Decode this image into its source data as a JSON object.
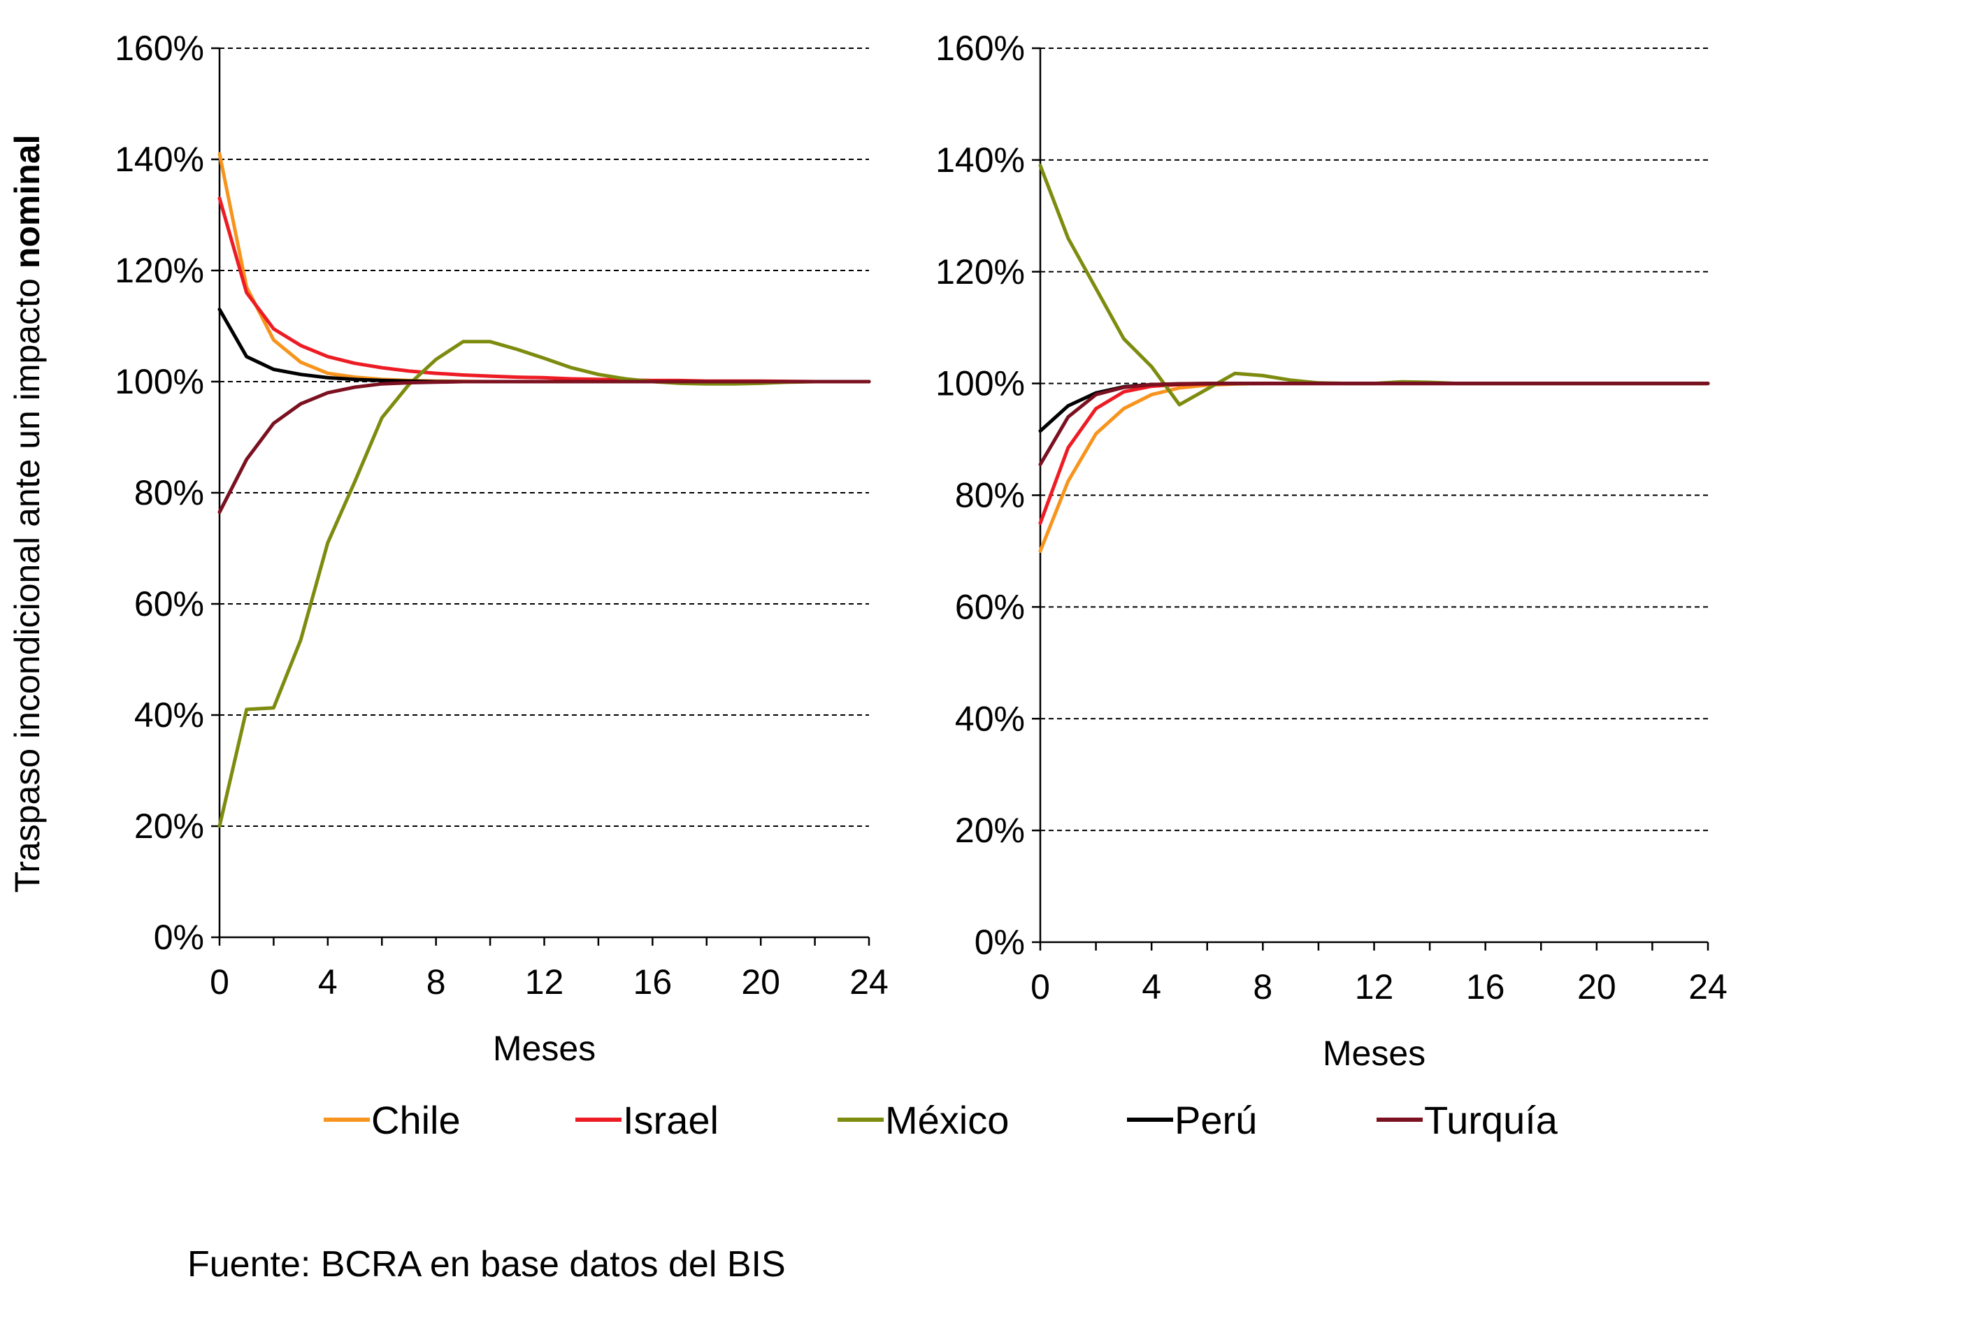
{
  "y_axis_title": {
    "prefix": "Traspaso incondicional ante un impacto ",
    "emphasis": "nominal"
  },
  "source_note": "Fuente: BCRA en base datos del BIS",
  "colors": {
    "Chile": "#F7941D",
    "Israel": "#ED1C24",
    "México": "#7D8B0E",
    "Perú": "#000000",
    "Turquía": "#7A1020",
    "grid": "#000000",
    "axis": "#000000"
  },
  "legend": [
    "Chile",
    "Israel",
    "México",
    "Perú",
    "Turquía"
  ],
  "chart_data": [
    {
      "type": "line",
      "xlabel": "Meses",
      "ylabel": "Traspaso incondicional ante un impacto nominal",
      "xlim": [
        0,
        24
      ],
      "ylim": [
        0,
        160
      ],
      "xticks": [
        0,
        4,
        8,
        12,
        16,
        20,
        24
      ],
      "yticks": [
        0,
        20,
        40,
        60,
        80,
        100,
        120,
        140,
        160
      ],
      "ytick_labels": [
        "0%",
        "20%",
        "40%",
        "60%",
        "80%",
        "100%",
        "120%",
        "140%",
        "160%"
      ],
      "grid": "horizontal dashed",
      "x": [
        0,
        1,
        2,
        3,
        4,
        5,
        6,
        7,
        8,
        9,
        10,
        11,
        12,
        13,
        14,
        15,
        16,
        17,
        18,
        19,
        20,
        21,
        22,
        23,
        24
      ],
      "series": [
        {
          "name": "Chile",
          "values": [
            141,
            117,
            107.5,
            103.5,
            101.5,
            100.8,
            100.4,
            100.2,
            100.1,
            100.05,
            100,
            100,
            100,
            100,
            100,
            100,
            100,
            100,
            100,
            100,
            100,
            100,
            100,
            100,
            100
          ]
        },
        {
          "name": "Israel",
          "values": [
            133,
            116,
            109.5,
            106.5,
            104.5,
            103.3,
            102.5,
            101.9,
            101.5,
            101.2,
            101.0,
            100.8,
            100.7,
            100.5,
            100.4,
            100.3,
            100.2,
            100.2,
            100.1,
            100.1,
            100.1,
            100.05,
            100,
            100,
            100
          ]
        },
        {
          "name": "México",
          "values": [
            20,
            41,
            41.3,
            53.5,
            71,
            82,
            93.5,
            99.5,
            104,
            107.2,
            107.2,
            105.8,
            104.2,
            102.5,
            101.3,
            100.5,
            100,
            99.7,
            99.6,
            99.6,
            99.7,
            99.9,
            100,
            100,
            100
          ]
        },
        {
          "name": "Perú",
          "values": [
            113,
            104.5,
            102.2,
            101.3,
            100.7,
            100.4,
            100.2,
            100.1,
            100,
            100,
            100,
            100,
            100,
            100,
            100,
            100,
            100,
            100,
            100,
            100,
            100,
            100,
            100,
            100,
            100
          ]
        },
        {
          "name": "Turquía",
          "values": [
            76.5,
            86,
            92.5,
            96,
            98,
            99,
            99.6,
            99.8,
            99.9,
            100,
            100,
            100,
            100,
            100,
            100,
            100,
            100,
            100,
            100,
            100,
            100,
            100,
            100,
            100,
            100
          ]
        }
      ]
    },
    {
      "type": "line",
      "xlabel": "Meses",
      "ylabel": "",
      "xlim": [
        0,
        24
      ],
      "ylim": [
        0,
        160
      ],
      "xticks": [
        0,
        4,
        8,
        12,
        16,
        20,
        24
      ],
      "yticks": [
        0,
        20,
        40,
        60,
        80,
        100,
        120,
        140,
        160
      ],
      "ytick_labels": [
        "0%",
        "20%",
        "40%",
        "60%",
        "80%",
        "100%",
        "120%",
        "140%",
        "160%"
      ],
      "grid": "horizontal dashed",
      "x": [
        0,
        1,
        2,
        3,
        4,
        5,
        6,
        7,
        8,
        9,
        10,
        11,
        12,
        13,
        14,
        15,
        16,
        17,
        18,
        19,
        20,
        21,
        22,
        23,
        24
      ],
      "series": [
        {
          "name": "Chile",
          "values": [
            70,
            82.5,
            91,
            95.5,
            98,
            99.2,
            99.7,
            99.9,
            100,
            100,
            100,
            100,
            100,
            100,
            100,
            100,
            100,
            100,
            100,
            100,
            100,
            100,
            100,
            100,
            100
          ]
        },
        {
          "name": "Israel",
          "values": [
            75,
            88.5,
            95.5,
            98.5,
            99.5,
            99.8,
            99.9,
            100,
            100,
            100,
            100,
            100,
            100,
            100,
            100,
            100,
            100,
            100,
            100,
            100,
            100,
            100,
            100,
            100,
            100
          ]
        },
        {
          "name": "México",
          "values": [
            139,
            126,
            117,
            108,
            103,
            96.2,
            99,
            101.8,
            101.4,
            100.6,
            100.1,
            100,
            100,
            100.3,
            100.2,
            100,
            100,
            100,
            100,
            100,
            100,
            100,
            100,
            100,
            100
          ]
        },
        {
          "name": "Perú",
          "values": [
            91.5,
            96,
            98.3,
            99.4,
            99.8,
            99.9,
            100,
            100,
            100,
            100,
            100,
            100,
            100,
            100,
            100,
            100,
            100,
            100,
            100,
            100,
            100,
            100,
            100,
            100,
            100
          ]
        },
        {
          "name": "Turquía",
          "values": [
            85.5,
            94,
            98,
            99.3,
            99.8,
            99.95,
            100,
            100,
            100,
            100,
            100,
            100,
            100,
            100,
            100,
            100,
            100,
            100,
            100,
            100,
            100,
            100,
            100,
            100,
            100
          ]
        }
      ]
    }
  ]
}
